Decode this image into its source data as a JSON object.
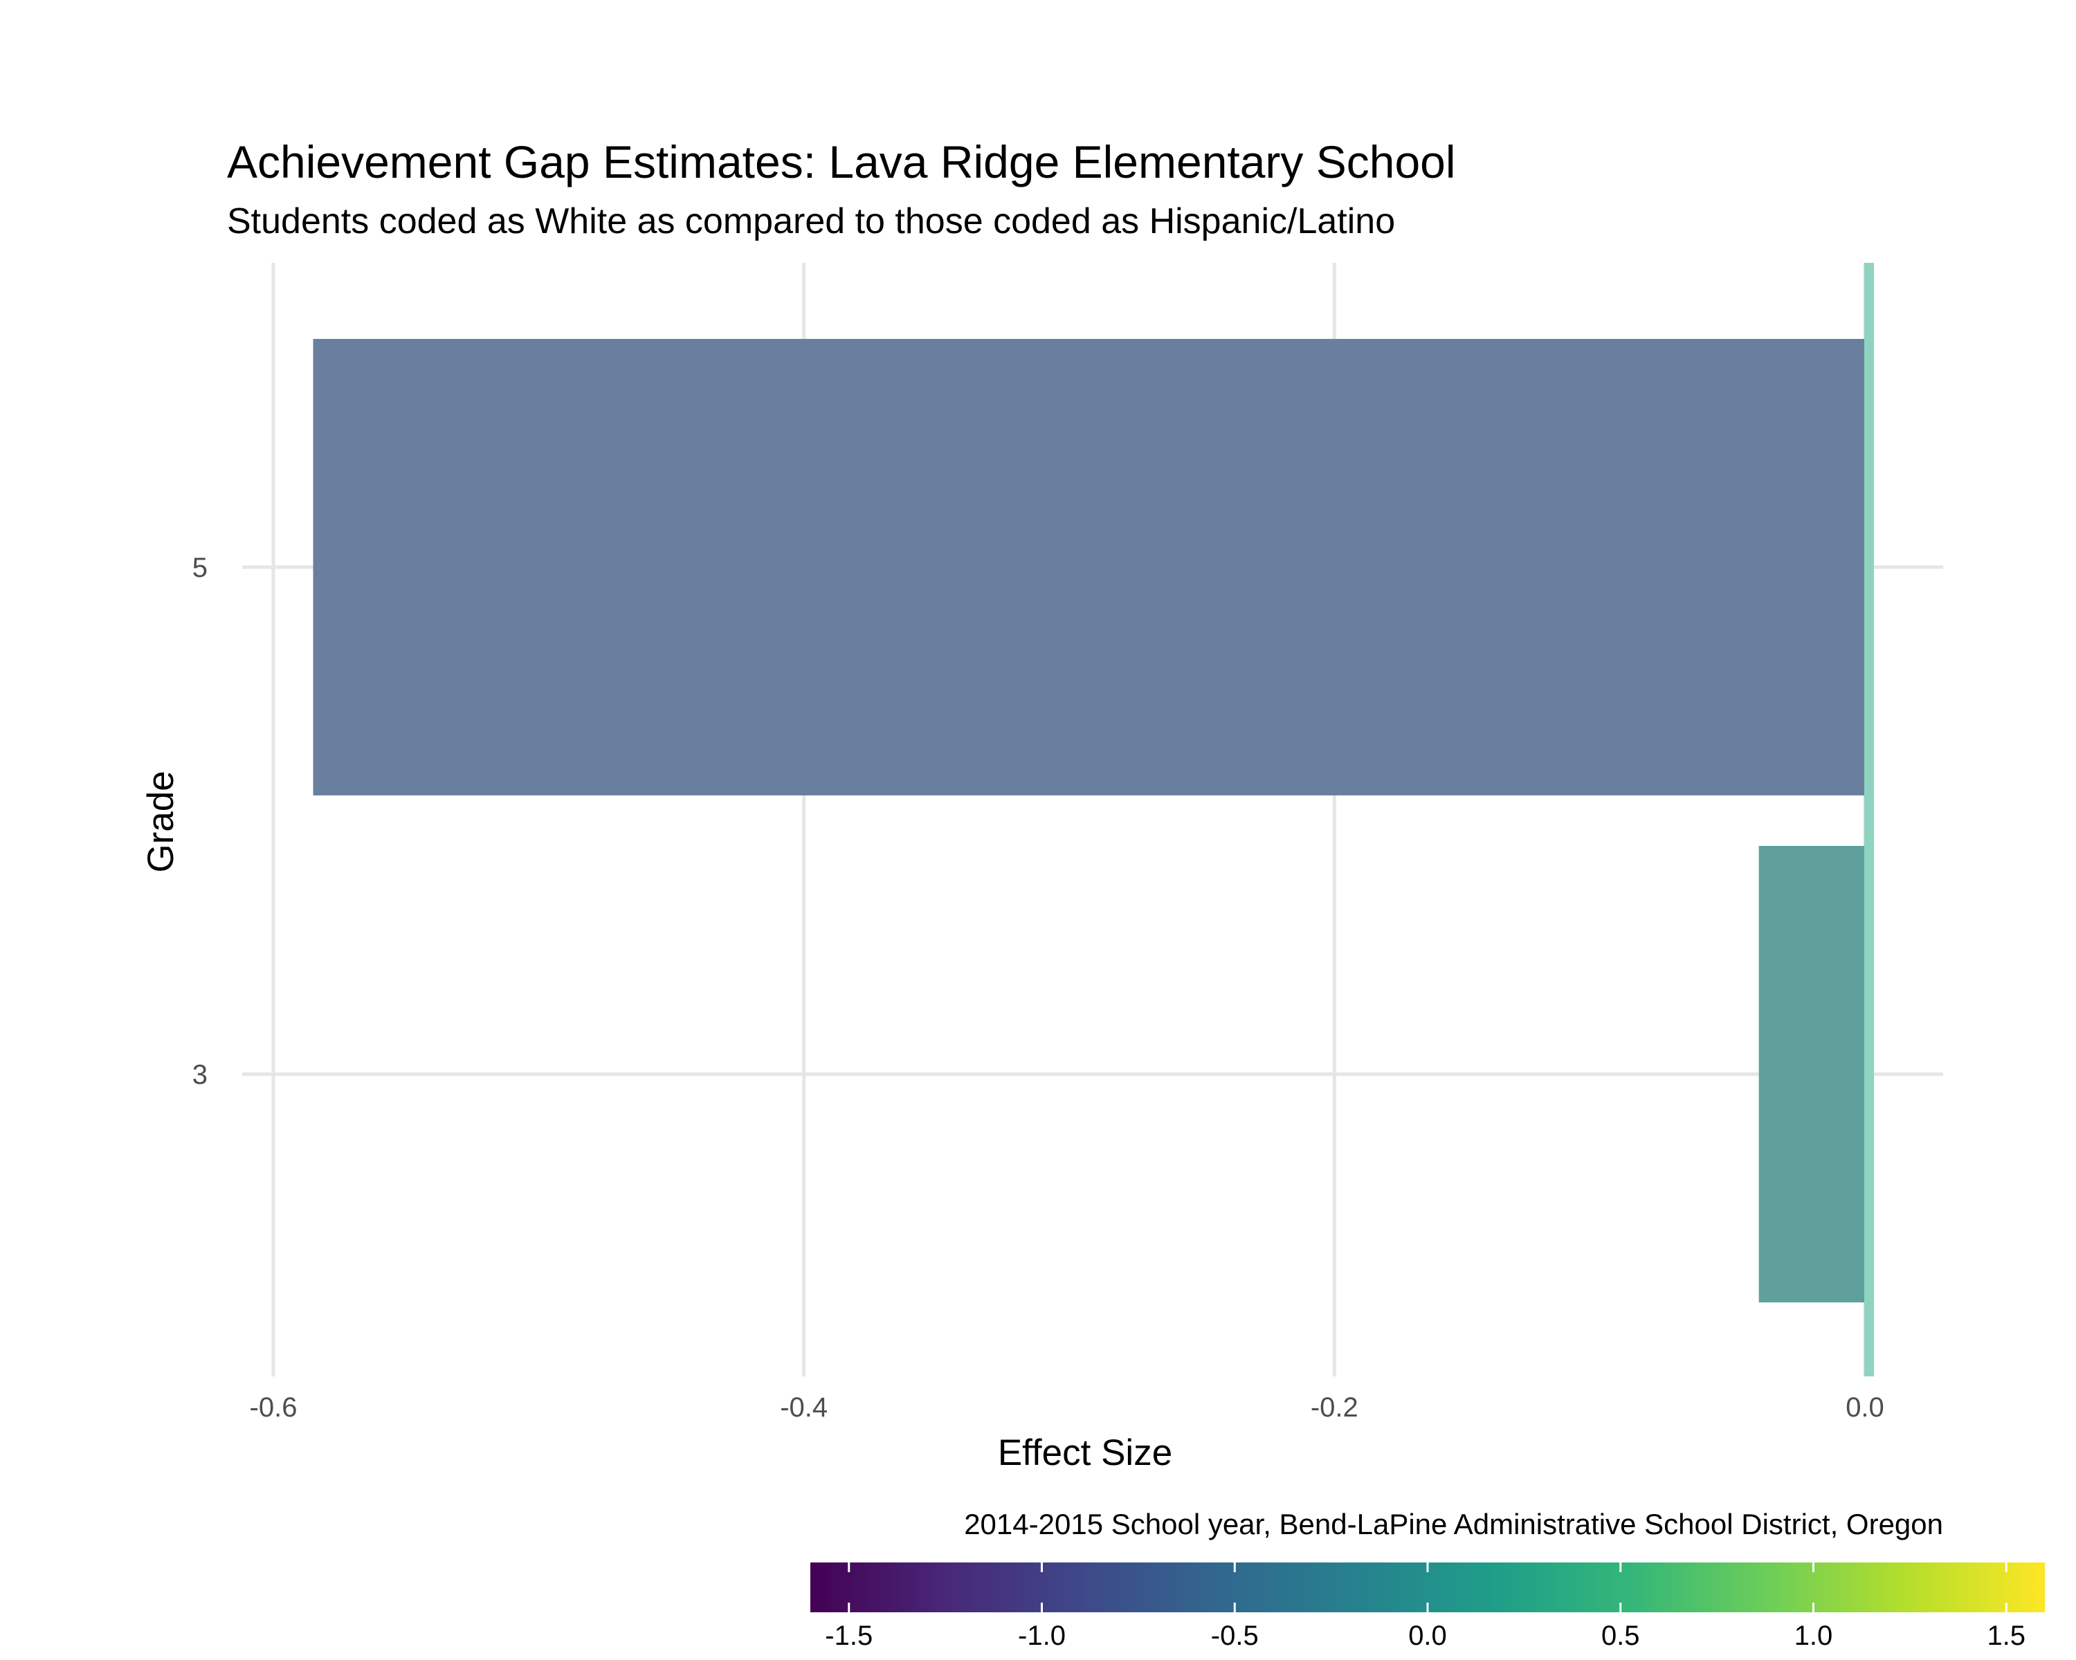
{
  "chart_data": {
    "type": "bar",
    "orientation": "horizontal",
    "title": "Achievement Gap Estimates: Lava Ridge Elementary School",
    "subtitle": "Students coded as White as compared to those coded as Hispanic/Latino",
    "caption": "2014-2015 School year, Bend-LaPine Administrative School District, Oregon",
    "xlabel": "Effect Size",
    "ylabel": "Grade",
    "categories": [
      "3",
      "5"
    ],
    "values": [
      -0.04,
      -0.585
    ],
    "xlim": [
      -0.6,
      0.0
    ],
    "xticks": [
      "-0.6",
      "-0.4",
      "-0.2",
      "0.0"
    ],
    "yticks": [
      "3",
      "5"
    ],
    "reference_line": {
      "x": 0.0,
      "color": "#8fd3c1"
    },
    "bar_colors": [
      "#5fa09c",
      "#6a7f9e"
    ],
    "grid": true,
    "legend": {
      "type": "colorbar",
      "position": "bottom-right",
      "range": [
        -1.6,
        1.6
      ],
      "ticks": [
        "-1.5",
        "-1.0",
        "-0.5",
        "0.0",
        "0.5",
        "1.0",
        "1.5"
      ],
      "palette": "viridis",
      "colors": [
        "#440154",
        "#482878",
        "#3e4989",
        "#31688e",
        "#26828e",
        "#1f9e89",
        "#35b779",
        "#6ece58",
        "#b5de2b",
        "#fde725"
      ]
    }
  }
}
